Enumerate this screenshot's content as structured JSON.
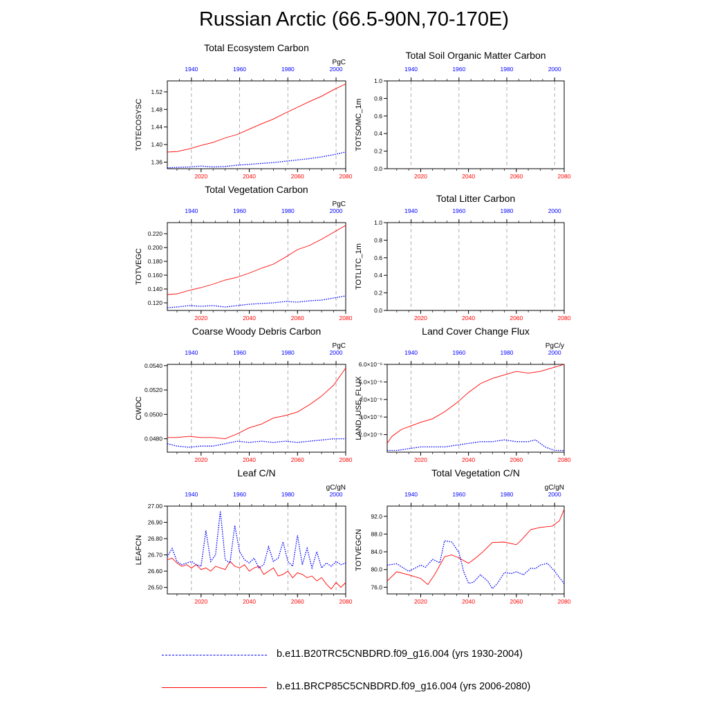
{
  "page_title": "Russian Arctic (66.5-90N,70-170E)",
  "colors": {
    "historical": "#0000ff",
    "future": "#ff0000",
    "grid": "#999999"
  },
  "legend": [
    {
      "label": "b.e11.B20TRC5CNBDRD.f09_g16.004 (yrs 1930-2004)",
      "color": "#0000ff",
      "style": "dashed"
    },
    {
      "label": "b.e11.BRCP85C5CNBDRD.f09_g16.004 (yrs 2006-2080)",
      "color": "#ff0000",
      "style": "solid"
    }
  ],
  "chart_data": [
    {
      "type": "line",
      "title": "Total Ecosystem Carbon",
      "ylabel": "TOTECOSYSC",
      "units": "PgC",
      "xlim": [
        2006,
        2080
      ],
      "top_xlim": [
        1930,
        2004
      ],
      "ylim": [
        1.345,
        1.545
      ],
      "bottom_ticks": [
        "2020",
        "2040",
        "2060",
        "2080"
      ],
      "top_ticks": [
        "1940",
        "1960",
        "1980",
        "2000"
      ],
      "yticks": [
        "1.36",
        "1.40",
        "1.44",
        "1.48",
        "1.52"
      ],
      "series": [
        {
          "x": [
            2006,
            2010,
            2015,
            2020,
            2025,
            2030,
            2035,
            2040,
            2045,
            2050,
            2055,
            2060,
            2065,
            2070,
            2075,
            2080
          ],
          "values": [
            1.383,
            1.384,
            1.39,
            1.398,
            1.405,
            1.415,
            1.423,
            1.435,
            1.447,
            1.458,
            1.472,
            1.485,
            1.498,
            1.51,
            1.525,
            1.538
          ]
        },
        {
          "x": [
            2006,
            2010,
            2015,
            2020,
            2025,
            2030,
            2035,
            2040,
            2045,
            2050,
            2055,
            2060,
            2065,
            2070,
            2075,
            2080
          ],
          "values": [
            1.347,
            1.348,
            1.349,
            1.351,
            1.349,
            1.35,
            1.353,
            1.355,
            1.357,
            1.359,
            1.362,
            1.365,
            1.368,
            1.372,
            1.377,
            1.383
          ]
        }
      ]
    },
    {
      "type": "line",
      "title": "Total Soil Organic Matter Carbon",
      "ylabel": "TOTSOMC_1m",
      "units": "",
      "xlim": [
        2006,
        2080
      ],
      "top_xlim": [
        1930,
        2004
      ],
      "ylim": [
        0,
        1
      ],
      "bottom_ticks": [
        "2020",
        "2040",
        "2060",
        "2080"
      ],
      "top_ticks": [
        "1940",
        "1960",
        "1980",
        "2000"
      ],
      "yticks": [
        "0.0",
        "0.2",
        "0.4",
        "0.6",
        "0.8",
        "1.0"
      ],
      "series": []
    },
    {
      "type": "line",
      "title": "Total Vegetation Carbon",
      "ylabel": "TOTVEGC",
      "units": "PgC",
      "xlim": [
        2006,
        2080
      ],
      "top_xlim": [
        1930,
        2004
      ],
      "ylim": [
        0.109,
        0.236
      ],
      "bottom_ticks": [
        "2020",
        "2040",
        "2060",
        "2080"
      ],
      "top_ticks": [
        "1940",
        "1960",
        "1980",
        "2000"
      ],
      "yticks": [
        "0.120",
        "0.140",
        "0.160",
        "0.180",
        "0.200",
        "0.220"
      ],
      "series": [
        {
          "x": [
            2006,
            2010,
            2015,
            2020,
            2025,
            2030,
            2035,
            2040,
            2045,
            2050,
            2055,
            2060,
            2065,
            2070,
            2075,
            2080
          ],
          "values": [
            0.132,
            0.133,
            0.138,
            0.142,
            0.147,
            0.153,
            0.157,
            0.163,
            0.17,
            0.176,
            0.186,
            0.197,
            0.203,
            0.212,
            0.222,
            0.232
          ]
        },
        {
          "x": [
            2006,
            2010,
            2015,
            2020,
            2025,
            2030,
            2035,
            2040,
            2045,
            2050,
            2055,
            2060,
            2065,
            2070,
            2075,
            2080
          ],
          "values": [
            0.113,
            0.114,
            0.116,
            0.115,
            0.116,
            0.114,
            0.116,
            0.118,
            0.119,
            0.12,
            0.122,
            0.121,
            0.123,
            0.124,
            0.127,
            0.13
          ]
        }
      ]
    },
    {
      "type": "line",
      "title": "Total Litter Carbon",
      "ylabel": "TOTLITC_1m",
      "units": "",
      "xlim": [
        2006,
        2080
      ],
      "top_xlim": [
        1930,
        2004
      ],
      "ylim": [
        0,
        1
      ],
      "bottom_ticks": [
        "2020",
        "2040",
        "2060",
        "2080"
      ],
      "top_ticks": [
        "1940",
        "1960",
        "1980",
        "2000"
      ],
      "yticks": [
        "0.0",
        "0.2",
        "0.4",
        "0.6",
        "0.8",
        "1.0"
      ],
      "series": []
    },
    {
      "type": "line",
      "title": "Coarse Woody Debris Carbon",
      "ylabel": "CWDC",
      "units": "PgC",
      "xlim": [
        2006,
        2080
      ],
      "top_xlim": [
        1930,
        2004
      ],
      "ylim": [
        0.0469,
        0.0541
      ],
      "bottom_ticks": [
        "2020",
        "2040",
        "2060",
        "2080"
      ],
      "top_ticks": [
        "1940",
        "1960",
        "1980",
        "2000"
      ],
      "yticks": [
        "0.0480",
        "0.0500",
        "0.0520",
        "0.0540"
      ],
      "series": [
        {
          "x": [
            2006,
            2010,
            2015,
            2020,
            2025,
            2030,
            2035,
            2040,
            2045,
            2050,
            2055,
            2060,
            2065,
            2070,
            2075,
            2080
          ],
          "values": [
            0.0481,
            0.0481,
            0.0482,
            0.0481,
            0.0481,
            0.048,
            0.0484,
            0.0489,
            0.0492,
            0.0497,
            0.0499,
            0.0502,
            0.0508,
            0.0515,
            0.0524,
            0.0538
          ]
        },
        {
          "x": [
            2006,
            2010,
            2015,
            2020,
            2025,
            2030,
            2035,
            2040,
            2045,
            2050,
            2055,
            2060,
            2065,
            2070,
            2075,
            2080
          ],
          "values": [
            0.0476,
            0.0474,
            0.0473,
            0.0474,
            0.0474,
            0.0476,
            0.0478,
            0.0477,
            0.0478,
            0.0477,
            0.0478,
            0.0477,
            0.0478,
            0.0479,
            0.048,
            0.048
          ]
        }
      ]
    },
    {
      "type": "line",
      "title": "Land Cover Change Flux",
      "ylabel": "LAND_USE_FLUX",
      "units": "PgC/y",
      "xlim": [
        2006,
        2080
      ],
      "top_xlim": [
        1930,
        2004
      ],
      "ylim": [
        1e-06,
        6e-06
      ],
      "bottom_ticks": [
        "2020",
        "2040",
        "2060",
        "2080"
      ],
      "top_ticks": [
        "1940",
        "1960",
        "1980",
        "2000"
      ],
      "yticks": [
        "2.0×10⁻⁶",
        "3.0×10⁻⁶",
        "4.0×10⁻⁶",
        "5.0×10⁻⁶",
        "6.0×10⁻⁶"
      ],
      "ytick_values": [
        2e-06,
        3e-06,
        4e-06,
        5e-06,
        6e-06
      ],
      "series": [
        {
          "x": [
            2006,
            2008,
            2012,
            2016,
            2020,
            2025,
            2030,
            2035,
            2040,
            2045,
            2050,
            2055,
            2060,
            2065,
            2070,
            2075,
            2080
          ],
          "values": [
            1.5e-06,
            1.9e-06,
            2.3e-06,
            2.5e-06,
            2.7e-06,
            2.9e-06,
            3.3e-06,
            3.8e-06,
            4.4e-06,
            4.9e-06,
            5.2e-06,
            5.4e-06,
            5.6e-06,
            5.5e-06,
            5.6e-06,
            5.8e-06,
            6e-06
          ]
        },
        {
          "x": [
            2006,
            2010,
            2015,
            2020,
            2025,
            2030,
            2035,
            2040,
            2045,
            2050,
            2055,
            2060,
            2065,
            2068,
            2072,
            2076,
            2080
          ],
          "values": [
            1.1e-06,
            1.1e-06,
            1.2e-06,
            1.3e-06,
            1.3e-06,
            1.3e-06,
            1.4e-06,
            1.5e-06,
            1.6e-06,
            1.6e-06,
            1.7e-06,
            1.6e-06,
            1.6e-06,
            1.7e-06,
            1.3e-06,
            1.1e-06,
            1.1e-06
          ]
        }
      ]
    },
    {
      "type": "line",
      "title": "Leaf C/N",
      "ylabel": "LEAFCN",
      "units": "gC/gN",
      "xlim": [
        2006,
        2080
      ],
      "top_xlim": [
        1930,
        2004
      ],
      "ylim": [
        26.46,
        27.0
      ],
      "bottom_ticks": [
        "2020",
        "2040",
        "2060",
        "2080"
      ],
      "top_ticks": [
        "1940",
        "1960",
        "1980",
        "2000"
      ],
      "yticks": [
        "26.50",
        "26.60",
        "26.70",
        "26.80",
        "26.90",
        "27.00"
      ],
      "series": [
        {
          "x": [
            2006,
            2008,
            2010,
            2012,
            2014,
            2016,
            2018,
            2020,
            2022,
            2024,
            2026,
            2028,
            2030,
            2032,
            2034,
            2036,
            2038,
            2040,
            2042,
            2044,
            2046,
            2048,
            2050,
            2052,
            2054,
            2056,
            2058,
            2060,
            2062,
            2064,
            2066,
            2068,
            2070,
            2072,
            2074,
            2076,
            2078,
            2080
          ],
          "values": [
            26.67,
            26.68,
            26.65,
            26.63,
            26.64,
            26.62,
            26.64,
            26.61,
            26.62,
            26.6,
            26.63,
            26.62,
            26.61,
            26.66,
            26.63,
            26.62,
            26.64,
            26.6,
            26.62,
            26.63,
            26.58,
            26.6,
            26.62,
            26.57,
            26.58,
            26.6,
            26.56,
            26.59,
            26.58,
            26.56,
            26.57,
            26.54,
            26.56,
            26.52,
            26.49,
            26.53,
            26.5,
            26.53
          ]
        },
        {
          "x": [
            2006,
            2008,
            2010,
            2012,
            2014,
            2016,
            2018,
            2020,
            2022,
            2024,
            2026,
            2028,
            2030,
            2032,
            2034,
            2036,
            2038,
            2040,
            2042,
            2044,
            2046,
            2048,
            2050,
            2052,
            2054,
            2056,
            2058,
            2060,
            2062,
            2064,
            2066,
            2068,
            2070,
            2072,
            2074,
            2076,
            2078,
            2080
          ],
          "values": [
            26.69,
            26.74,
            26.66,
            26.64,
            26.65,
            26.66,
            26.64,
            26.63,
            26.85,
            26.66,
            26.7,
            26.97,
            26.67,
            26.65,
            26.88,
            26.72,
            26.67,
            26.65,
            26.68,
            26.62,
            26.64,
            26.75,
            26.66,
            26.68,
            26.78,
            26.66,
            26.63,
            26.82,
            26.64,
            26.74,
            26.62,
            26.72,
            26.62,
            26.65,
            26.63,
            26.66,
            26.64,
            26.65
          ]
        }
      ]
    },
    {
      "type": "line",
      "title": "Total Vegetation C/N",
      "ylabel": "TOTVEGCN",
      "units": "gC/gN",
      "xlim": [
        2006,
        2080
      ],
      "top_xlim": [
        1930,
        2004
      ],
      "ylim": [
        74.5,
        94.3
      ],
      "bottom_ticks": [
        "2020",
        "2040",
        "2060",
        "2080"
      ],
      "top_ticks": [
        "1940",
        "1960",
        "1980",
        "2000"
      ],
      "yticks": [
        "76.0",
        "80.0",
        "84.0",
        "88.0",
        "92.0"
      ],
      "series": [
        {
          "x": [
            2006,
            2010,
            2015,
            2020,
            2023,
            2026,
            2030,
            2033,
            2036,
            2040,
            2043,
            2046,
            2050,
            2055,
            2060,
            2062,
            2066,
            2070,
            2075,
            2078,
            2080
          ],
          "values": [
            77.4,
            79.5,
            78.8,
            78.0,
            76.6,
            79.0,
            82.9,
            83.3,
            82.6,
            81.4,
            82.6,
            84.0,
            86.1,
            86.2,
            85.6,
            86.6,
            89.0,
            89.5,
            89.8,
            91.0,
            93.6
          ]
        },
        {
          "x": [
            2006,
            2010,
            2015,
            2018,
            2020,
            2022,
            2025,
            2028,
            2030,
            2033,
            2036,
            2038,
            2040,
            2042,
            2045,
            2048,
            2050,
            2052,
            2055,
            2058,
            2060,
            2063,
            2066,
            2068,
            2070,
            2073,
            2076,
            2080
          ],
          "values": [
            81.0,
            81.3,
            79.6,
            80.4,
            81.0,
            80.5,
            82.3,
            81.5,
            86.5,
            86.2,
            83.8,
            79.5,
            76.9,
            77.1,
            78.8,
            77.4,
            75.7,
            76.8,
            79.3,
            79.1,
            79.5,
            78.8,
            80.3,
            80.2,
            81.0,
            81.4,
            79.6,
            76.8
          ]
        }
      ]
    }
  ]
}
